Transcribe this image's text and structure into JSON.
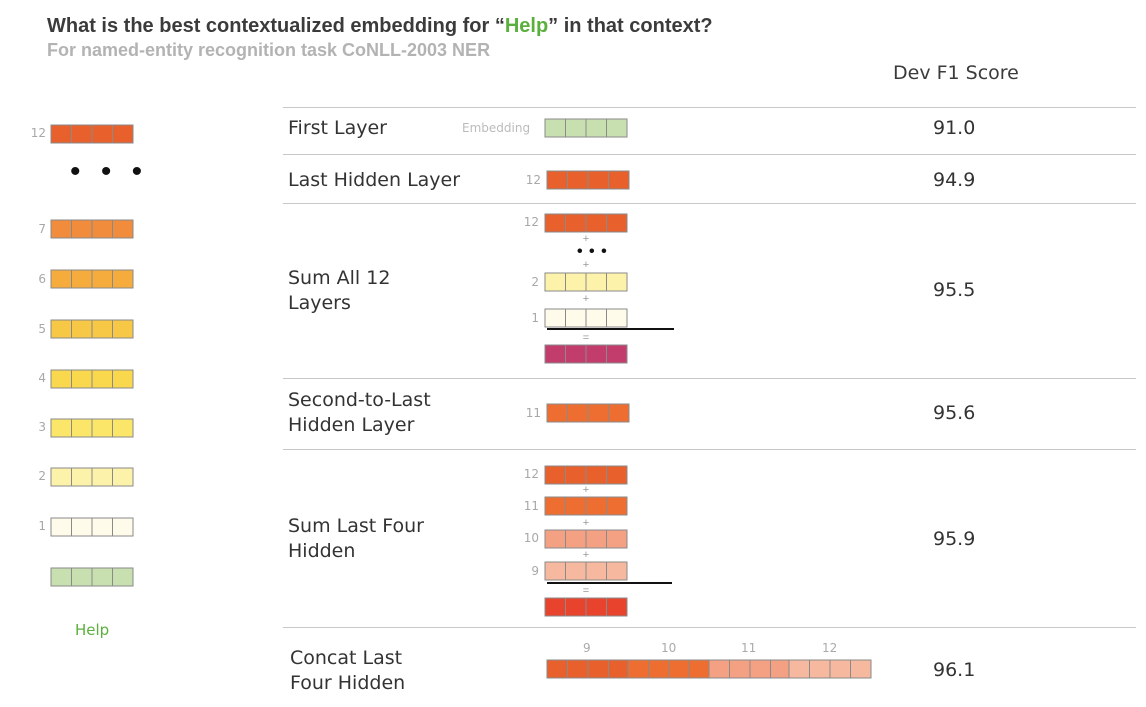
{
  "title": {
    "prefix": "What is the best contextualized embedding for “",
    "word": "Help",
    "suffix": "” in that context?"
  },
  "subtitle": "For named-entity recognition task CoNLL-2003 NER",
  "column_header": "Dev F1 Score",
  "stack": {
    "layers": [
      "12",
      "7",
      "6",
      "5",
      "4",
      "3",
      "2",
      "1"
    ],
    "ellipsis": "• • •",
    "token": "Help"
  },
  "rows": [
    {
      "label": "First Layer",
      "score": "91.0",
      "layer_tag": "Embedding"
    },
    {
      "label": "Last Hidden Layer",
      "score": "94.9",
      "layer_tag": "12"
    },
    {
      "label": "Sum All 12\nLayers",
      "score": "95.5",
      "layer_tags": [
        "12",
        "2",
        "1"
      ],
      "ops": [
        "+",
        "+",
        "+",
        "="
      ],
      "ellipsis": "• • •"
    },
    {
      "label": "Second-to-Last\nHidden Layer",
      "score": "95.6",
      "layer_tag": "11"
    },
    {
      "label": "Sum Last Four\nHidden",
      "score": "95.9",
      "layer_tags": [
        "12",
        "11",
        "10",
        "9"
      ],
      "ops": [
        "+",
        "+",
        "+",
        "="
      ]
    },
    {
      "label": "Concat Last\nFour Hidden",
      "score": "96.1",
      "layer_tags": [
        "9",
        "10",
        "11",
        "12"
      ]
    }
  ],
  "colors": {
    "l12": "#e8602c",
    "l7": "#f08c3c",
    "l6": "#f5ac3c",
    "l5": "#f7c845",
    "l4": "#f9d84d",
    "l3": "#fbe66a",
    "l2": "#fdf2aa",
    "l1": "#fffbea",
    "embedding": "#c8e0b0",
    "l11": "#ee6e32",
    "l10": "#f3a083",
    "l9": "#f6b9a0",
    "sum_all": "#c23c6c",
    "sum_four": "#e8432c",
    "accent_green": "#5ab03c"
  }
}
